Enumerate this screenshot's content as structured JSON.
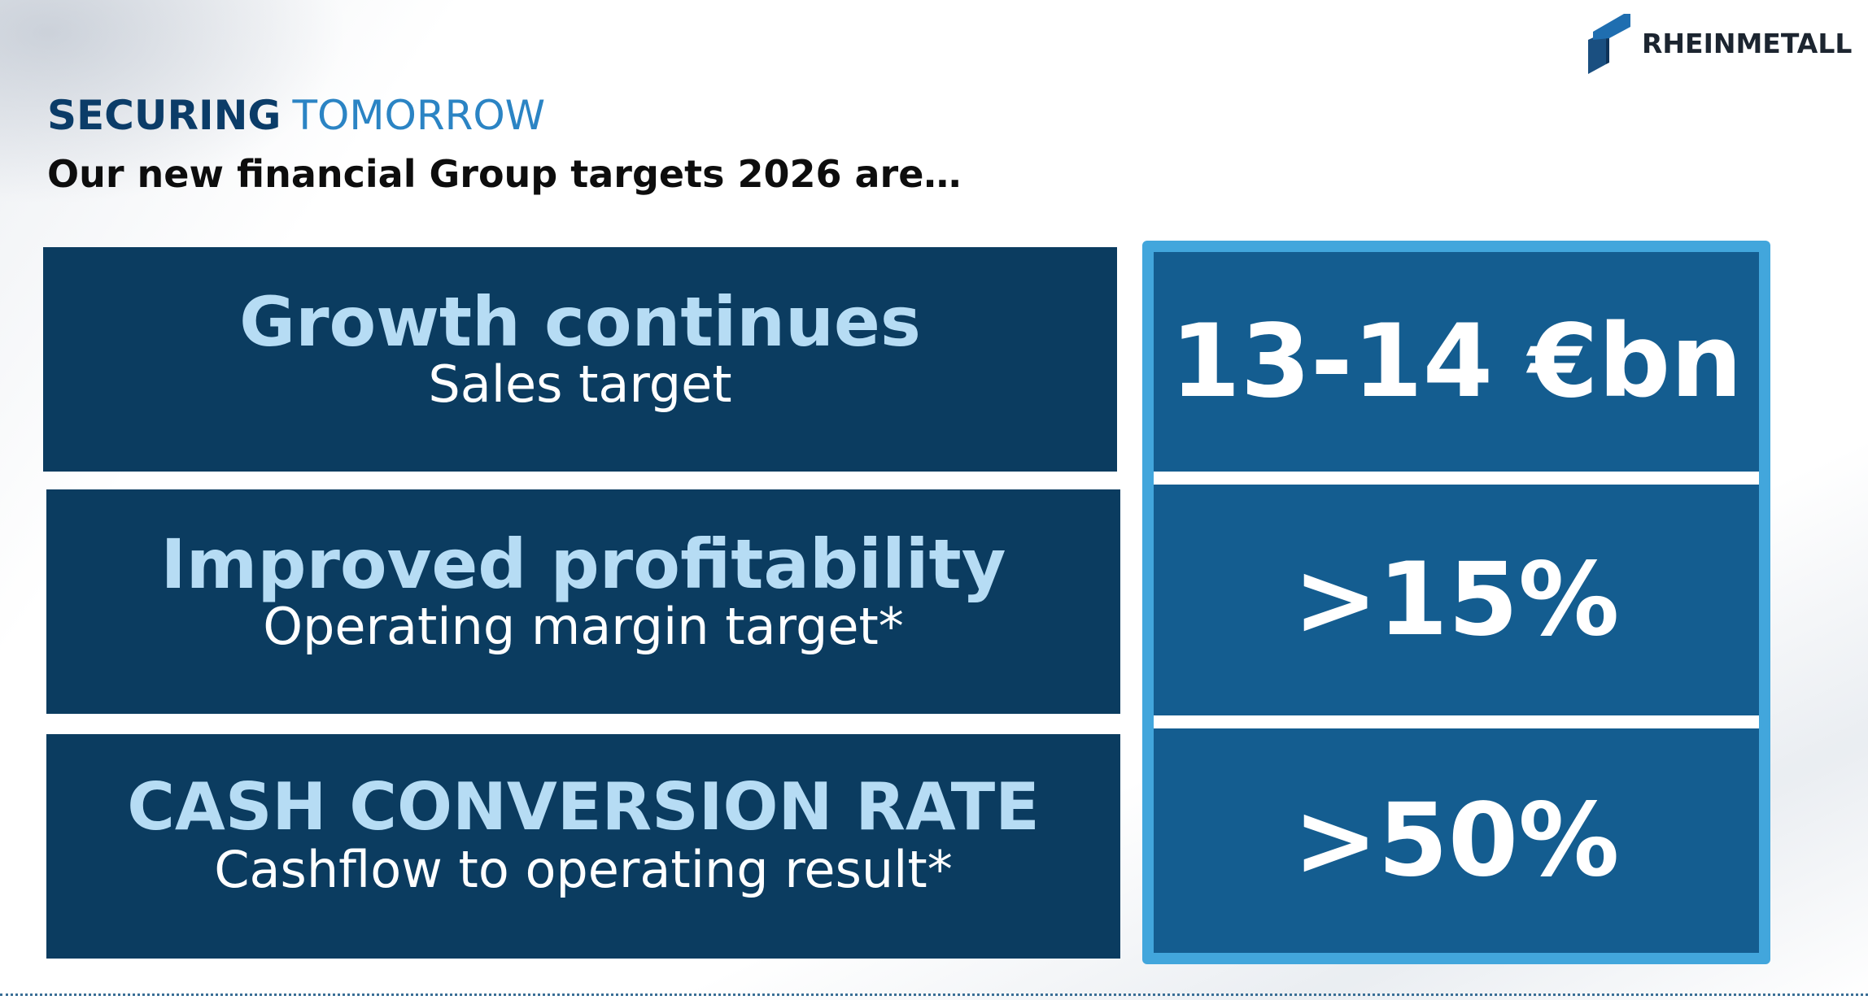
{
  "brand": {
    "logo_text": "RHEINMETALL",
    "primary_color": "#0b3c60",
    "accent_color": "#2b84c4",
    "light_text_color": "#b6dcf4",
    "value_panel_color": "#145d90",
    "frame_color": "#42a6dc"
  },
  "header": {
    "kicker_bold": "SECURING",
    "kicker_light": "TOMORROW",
    "title": "Our new financial Group targets 2026 are…"
  },
  "targets": [
    {
      "title": "Growth continues",
      "subtitle": "Sales target",
      "value": "13-14 €bn"
    },
    {
      "title": "Improved profitability",
      "subtitle": "Operating margin target*",
      "value": ">15%"
    },
    {
      "title": "CASH CONVERSION RATE",
      "subtitle": "Cashflow to operating result*",
      "value": ">50%"
    }
  ]
}
